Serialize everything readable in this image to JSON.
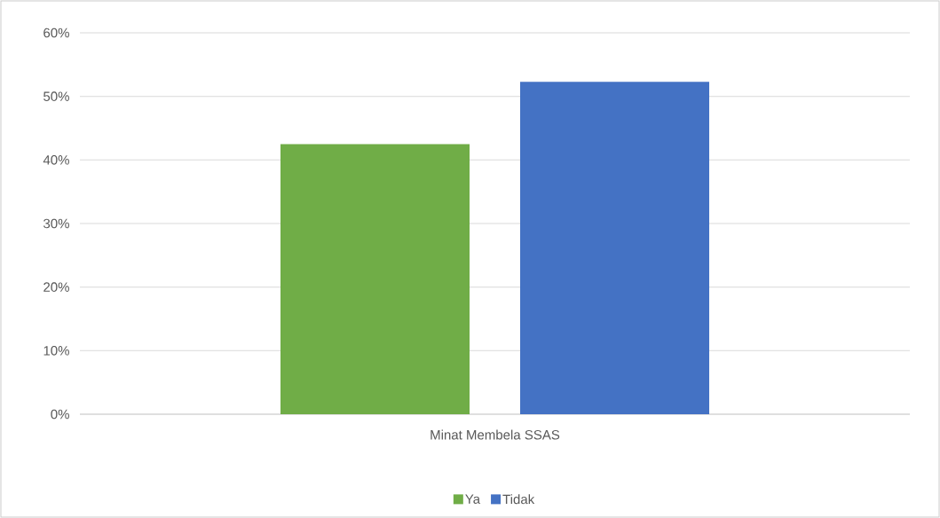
{
  "chart_data": {
    "type": "bar",
    "categories": [
      "Minat Membela SSAS"
    ],
    "series": [
      {
        "name": "Ya",
        "color": "#70ad47",
        "values": [
          42.5
        ]
      },
      {
        "name": "Tidak",
        "color": "#4472c4",
        "values": [
          52.3
        ]
      }
    ],
    "ylim": [
      0,
      60
    ],
    "yticks": [
      {
        "value": 0,
        "label": "0%"
      },
      {
        "value": 10,
        "label": "10%"
      },
      {
        "value": 20,
        "label": "20%"
      },
      {
        "value": 30,
        "label": "30%"
      },
      {
        "value": 40,
        "label": "40%"
      },
      {
        "value": 50,
        "label": "50%"
      },
      {
        "value": 60,
        "label": "60%"
      }
    ],
    "grid": "y",
    "legend": "bottom"
  }
}
